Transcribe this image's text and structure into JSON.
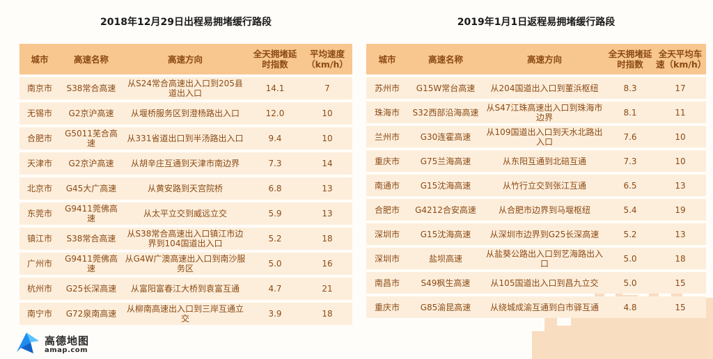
{
  "chart_data": [
    {
      "type": "table",
      "title": "2018年12月29日出程易拥堵缓行路段",
      "columns": [
        "城市",
        "高速名称",
        "高速方向",
        "全天拥堵延时指数",
        "平均速度（km/h）"
      ],
      "rows": [
        [
          "南京市",
          "S38常合高速",
          "从S24常合高速出入口到205县道出入口",
          "14.1",
          "7"
        ],
        [
          "无锡市",
          "G2京沪高速",
          "从堰桥服务区到澄杨路出入口",
          "12.0",
          "10"
        ],
        [
          "合肥市",
          "G5011芜合高速",
          "从331省道出口到半汤路出入口",
          "9.4",
          "10"
        ],
        [
          "天津市",
          "G2京沪高速",
          "从胡辛庄互通到天津市南边界",
          "7.3",
          "14"
        ],
        [
          "北京市",
          "G45大广高速",
          "从黄安路到天宫院桥",
          "6.8",
          "13"
        ],
        [
          "东莞市",
          "G9411莞佛高速",
          "从太平立交到威远立交",
          "5.9",
          "13"
        ],
        [
          "镇江市",
          "S38常合高速",
          "从S38常合高速出入口镇江市边界到104国道出入口",
          "5.2",
          "18"
        ],
        [
          "广州市",
          "G9411莞佛高速",
          "从G4W广澳高速出入口到南沙服务区",
          "5.0",
          "16"
        ],
        [
          "杭州市",
          "G25长深高速",
          "从富阳富春江大桥到袁富互通",
          "4.7",
          "21"
        ],
        [
          "南宁市",
          "G72泉南高速",
          "从柳南高速出入口到三岸互通立交",
          "3.9",
          "18"
        ]
      ]
    },
    {
      "type": "table",
      "title": "2019年1月1日返程易拥堵缓行路段",
      "columns": [
        "城市",
        "高速名称",
        "高速方向",
        "全天拥堵延时指数",
        "全天平均车速（km/h）"
      ],
      "rows": [
        [
          "苏州市",
          "G15W常台高速",
          "从204国道出入口到董浜枢纽",
          "8.3",
          "17"
        ],
        [
          "珠海市",
          "S32西部沿海高速",
          "从S47江珠高速出入口到珠海市边界",
          "8.1",
          "11"
        ],
        [
          "兰州市",
          "G30连霍高速",
          "从109国道出入口到天水北路出入口",
          "7.6",
          "10"
        ],
        [
          "重庆市",
          "G75兰海高速",
          "从东阳互通到北碚互通",
          "7.3",
          "10"
        ],
        [
          "南通市",
          "G15沈海高速",
          "从竹行立交到张江互通",
          "6.5",
          "13"
        ],
        [
          "合肥市",
          "G4212合安高速",
          "从合肥市边界到马堰枢纽",
          "5.4",
          "19"
        ],
        [
          "深圳市",
          "G15沈海高速",
          "从深圳市边界到G25长深高速",
          "5.2",
          "13"
        ],
        [
          "深圳市",
          "盐坝高速",
          "从盐葵公路出入口到艺海路出入口",
          "5.0",
          "18"
        ],
        [
          "南昌市",
          "S49枫生高速",
          "从105国道出入口到昌九立交",
          "5.0",
          "15"
        ],
        [
          "重庆市",
          "G85渝昆高速",
          "从绕城成渝互通到白市驿互通",
          "4.8",
          "15"
        ]
      ]
    }
  ],
  "logo": {
    "name": "高德地图",
    "site": "amap.com"
  },
  "colors": {
    "header": "#f8c68f",
    "row": "#fdeedc",
    "text": "#8b4a13",
    "skyline": "#f7d3ad"
  }
}
